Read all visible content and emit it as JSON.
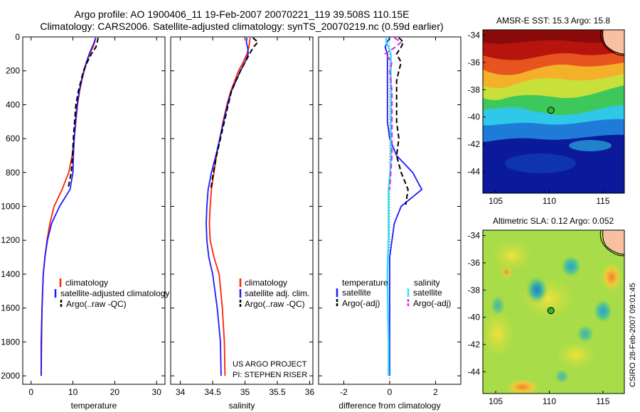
{
  "title_line1": "Argo profile: AO 1900406_11 19-Feb-2007 20070221_119 39.508S 110.15E",
  "title_line2": "Climatology: CARS2006. Satellite-adjusted climatology: synTS_20070219.nc (0.59d earlier)",
  "credit_vertical": "CSIRO 28-Feb-2007 09:01:45",
  "project_lines": [
    "US ARGO PROJECT",
    "PI: STEPHEN RISER"
  ],
  "colors": {
    "red": "#ff2200",
    "blue": "#1a1aff",
    "black": "#000000",
    "cyan": "#33e0f0",
    "magenta": "#e020e0"
  },
  "chart_data": [
    {
      "type": "line",
      "id": "temperature",
      "xlabel": "temperature",
      "ylabel": "",
      "xlim": [
        -2,
        32
      ],
      "ylim": [
        2050,
        0
      ],
      "xticks": [
        0,
        10,
        20,
        30
      ],
      "yticks": [
        0,
        200,
        400,
        600,
        800,
        1000,
        1200,
        1400,
        1600,
        1800,
        2000
      ],
      "legend": {
        "position": "lower-right",
        "entries": [
          "climatology",
          "satellite-adjusted climatology",
          "Argo(..raw -QC)"
        ]
      },
      "series": [
        {
          "name": "climatology",
          "color": "red",
          "dash": "solid",
          "x": [
            15.4,
            15.2,
            14.8,
            14.0,
            13.3,
            12.7,
            12.1,
            11.6,
            11.1,
            10.7,
            10.3,
            9.8,
            9.0,
            7.4,
            5.5,
            4.5,
            3.8,
            3.3,
            2.9,
            2.6,
            2.5,
            2.4
          ],
          "y": [
            5,
            30,
            60,
            100,
            150,
            200,
            260,
            320,
            400,
            500,
            600,
            700,
            800,
            900,
            1000,
            1100,
            1200,
            1300,
            1400,
            1600,
            1800,
            2000
          ]
        },
        {
          "name": "satellite-adjusted climatology",
          "color": "blue",
          "dash": "solid",
          "x": [
            15.4,
            15.1,
            14.6,
            13.9,
            13.2,
            12.6,
            12.0,
            11.5,
            11.0,
            10.6,
            10.3,
            10.1,
            10.0,
            9.3,
            6.8,
            4.9,
            3.9,
            3.3,
            2.9,
            2.6,
            2.4,
            2.4
          ],
          "y": [
            5,
            30,
            60,
            100,
            150,
            200,
            260,
            320,
            400,
            500,
            600,
            700,
            800,
            900,
            1000,
            1100,
            1200,
            1300,
            1400,
            1600,
            1800,
            2000
          ]
        },
        {
          "name": "Argo(..raw -QC)",
          "color": "black",
          "dash": "dashed",
          "x": [
            16.0,
            15.8,
            15.5,
            14.4,
            13.4,
            12.5,
            11.9,
            11.3,
            10.7,
            10.4,
            10.1,
            9.9,
            9.6,
            8.8
          ],
          "y": [
            5,
            30,
            60,
            100,
            150,
            200,
            260,
            320,
            400,
            500,
            600,
            700,
            800,
            900
          ]
        }
      ]
    },
    {
      "type": "line",
      "id": "salinity",
      "xlabel": "salinity",
      "ylabel": "",
      "xlim": [
        33.85,
        36.05
      ],
      "ylim": [
        2050,
        0
      ],
      "xticks": [
        34,
        34.5,
        35,
        35.5,
        36
      ],
      "xticklabels": [
        "34",
        "34.5",
        "35",
        "35.5",
        "36"
      ],
      "legend": {
        "position": "lower-right",
        "entries": [
          "climatology",
          "satellite adj. clim.",
          "Argo(..raw -QC)"
        ]
      },
      "series": [
        {
          "name": "climatology",
          "color": "red",
          "dash": "solid",
          "x": [
            35.08,
            35.07,
            35.06,
            35.03,
            34.97,
            34.9,
            34.84,
            34.78,
            34.72,
            34.66,
            34.61,
            34.56,
            34.52,
            34.48,
            34.46,
            34.45,
            34.46,
            34.52,
            34.6,
            34.65,
            34.68,
            34.69
          ],
          "y": [
            5,
            30,
            60,
            100,
            150,
            200,
            260,
            320,
            400,
            500,
            600,
            700,
            800,
            900,
            1000,
            1100,
            1200,
            1300,
            1400,
            1600,
            1800,
            2000
          ]
        },
        {
          "name": "satellite adj. clim.",
          "color": "blue",
          "dash": "solid",
          "x": [
            35.03,
            35.02,
            35.04,
            35.05,
            35.0,
            34.93,
            34.86,
            34.79,
            34.73,
            34.67,
            34.61,
            34.55,
            34.48,
            34.43,
            34.41,
            34.4,
            34.41,
            34.44,
            34.5,
            34.57,
            34.62,
            34.63
          ],
          "y": [
            5,
            30,
            60,
            100,
            150,
            200,
            260,
            320,
            400,
            500,
            600,
            700,
            800,
            900,
            1000,
            1100,
            1200,
            1300,
            1400,
            1600,
            1800,
            2000
          ]
        },
        {
          "name": "Argo(..raw -QC)",
          "color": "black",
          "dash": "dashed",
          "x": [
            35.12,
            35.2,
            35.13,
            35.07,
            35.0,
            34.93,
            34.86,
            34.79,
            34.74,
            34.68,
            34.62,
            34.56,
            34.51,
            34.47
          ],
          "y": [
            5,
            30,
            60,
            100,
            150,
            200,
            260,
            320,
            400,
            500,
            600,
            700,
            800,
            900
          ]
        }
      ]
    },
    {
      "type": "line",
      "id": "difference",
      "xlabel": "difference from climatology",
      "ylabel": "",
      "xlim": [
        -3.1,
        3.1
      ],
      "ylim": [
        2050,
        0
      ],
      "xticks": [
        -2,
        0,
        2
      ],
      "legend": {
        "position": "lower",
        "groups": [
          "temperature",
          "salinity"
        ],
        "entries": [
          "satellite",
          "Argo(-adj)",
          "satellite",
          "Argo(-adj)"
        ]
      },
      "series": [
        {
          "name": "temperature satellite",
          "color": "blue",
          "dash": "solid",
          "x": [
            0.0,
            -0.1,
            -0.2,
            -0.1,
            -0.1,
            -0.1,
            -0.1,
            -0.1,
            -0.1,
            -0.1,
            0.0,
            0.3,
            1.0,
            1.4,
            0.5,
            0.2,
            0.1,
            0.0,
            0.0,
            0.0,
            0.0,
            0.0
          ],
          "y": [
            5,
            30,
            60,
            100,
            150,
            200,
            260,
            320,
            400,
            500,
            600,
            700,
            800,
            900,
            1000,
            1100,
            1200,
            1300,
            1400,
            1600,
            1800,
            2000
          ]
        },
        {
          "name": "salinity satellite",
          "color": "cyan",
          "dash": "solid",
          "x": [
            -0.15,
            -0.15,
            -0.05,
            0.05,
            0.05,
            0.05,
            0.05,
            0.05,
            0.05,
            0.05,
            0.05,
            0.05,
            0.02,
            -0.05,
            -0.05,
            -0.05,
            -0.05,
            -0.08,
            -0.1,
            -0.08,
            -0.05,
            -0.05
          ],
          "y": [
            5,
            30,
            60,
            100,
            150,
            200,
            260,
            320,
            400,
            500,
            600,
            700,
            800,
            900,
            1000,
            1100,
            1200,
            1300,
            1400,
            1600,
            1800,
            2000
          ]
        },
        {
          "name": "temperature Argo(-adj)",
          "color": "black",
          "dash": "dashed",
          "x": [
            0.4,
            0.6,
            0.5,
            0.3,
            0.5,
            0.4,
            0.3,
            0.3,
            0.3,
            0.3,
            0.4,
            0.3,
            0.5,
            0.8,
            0.7
          ],
          "y": [
            5,
            30,
            60,
            100,
            150,
            200,
            260,
            320,
            400,
            500,
            600,
            700,
            800,
            900,
            990
          ]
        },
        {
          "name": "salinity Argo(-adj)",
          "color": "magenta",
          "dash": "dashed",
          "x": [
            0.2,
            0.5,
            0.25,
            -0.2,
            0.1,
            0.0,
            0.05,
            0.1,
            0.1,
            0.1,
            0.1,
            0.1,
            0.05,
            0.0
          ],
          "y": [
            5,
            30,
            60,
            100,
            150,
            200,
            260,
            320,
            400,
            500,
            600,
            700,
            800,
            900
          ]
        }
      ]
    },
    {
      "type": "heatmap",
      "id": "sst-map",
      "title": "AMSR-E SST: 15.3 Argo: 15.8",
      "xlim": [
        103.8,
        117.0
      ],
      "ylim": [
        -45.6,
        -33.6
      ],
      "xticks": [
        105,
        110,
        115
      ],
      "yticks": [
        -34,
        -36,
        -38,
        -40,
        -42,
        -44
      ],
      "marker": {
        "lon": 110.15,
        "lat": -39.508
      }
    },
    {
      "type": "heatmap",
      "id": "sla-map",
      "title": "Altimetric SLA: 0.12 Argo: 0.052",
      "xlim": [
        103.8,
        117.0
      ],
      "ylim": [
        -45.6,
        -33.6
      ],
      "xticks": [
        105,
        110,
        115
      ],
      "yticks": [
        -34,
        -36,
        -38,
        -40,
        -42,
        -44
      ],
      "marker": {
        "lon": 110.15,
        "lat": -39.508
      }
    }
  ]
}
